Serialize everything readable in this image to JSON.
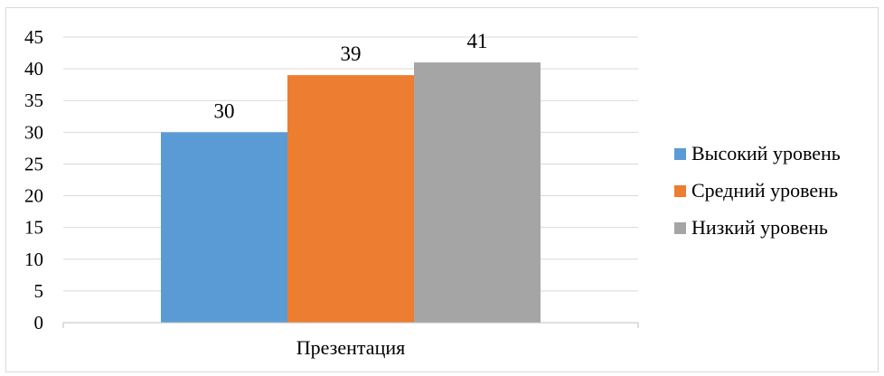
{
  "chart_data": {
    "type": "bar",
    "title": "",
    "xlabel": "",
    "ylabel": "",
    "categories": [
      "Презентация"
    ],
    "series": [
      {
        "name": "Высокий уровень",
        "values": [
          30
        ],
        "color": "#5b9bd5"
      },
      {
        "name": "Средний уровень",
        "values": [
          39
        ],
        "color": "#ed7d31"
      },
      {
        "name": "Низкий уровень",
        "values": [
          41
        ],
        "color": "#a5a5a5"
      }
    ],
    "ylim": [
      0,
      45
    ],
    "ytick_step": 5,
    "yticks": [
      "0",
      "5",
      "10",
      "15",
      "20",
      "25",
      "30",
      "35",
      "40",
      "45"
    ],
    "grid": true,
    "data_labels": true,
    "legend_position": "right"
  }
}
